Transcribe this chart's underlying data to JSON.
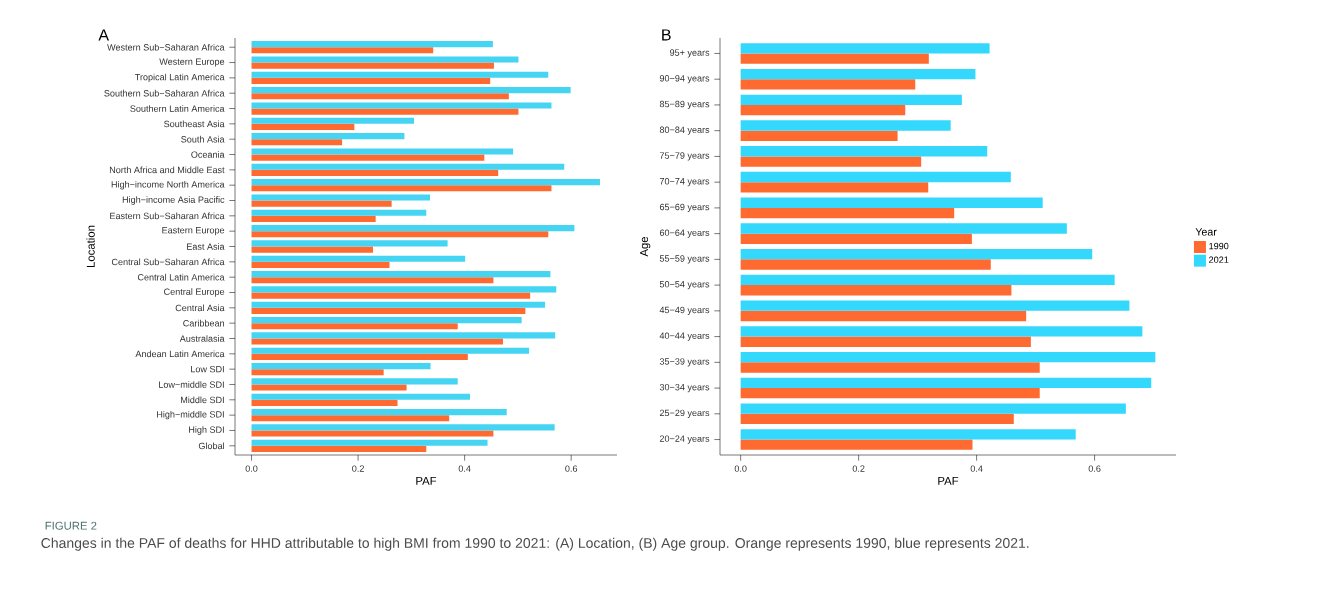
{
  "chart_data": [
    {
      "type": "bar",
      "orientation": "horizontal",
      "title": "A",
      "xlabel": "PAF",
      "ylabel": "Location",
      "legend": false,
      "categories": [
        "Western Sub−Saharan Africa",
        "Western Europe",
        "Tropical Latin America",
        "Southern Sub−Saharan Africa",
        "Southern Latin America",
        "Southeast Asia",
        "South Asia",
        "Oceania",
        "North Africa and Middle East",
        "High−income North America",
        "High−income Asia Pacific",
        "Eastern Sub−Saharan Africa",
        "Eastern Europe",
        "East Asia",
        "Central Sub−Saharan Africa",
        "Central Latin America",
        "Central Europe",
        "Central Asia",
        "Caribbean",
        "Australasia",
        "Andean Latin America",
        "Low SDI",
        "Low−middle SDI",
        "Middle SDI",
        "High−middle SDI",
        "High SDI",
        "Global"
      ],
      "series": [
        {
          "color": "#fe6a30",
          "values": [
            0.341,
            0.455,
            0.448,
            0.483,
            0.501,
            0.193,
            0.17,
            0.437,
            0.463,
            0.563,
            0.263,
            0.233,
            0.557,
            0.228,
            0.259,
            0.454,
            0.523,
            0.514,
            0.387,
            0.472,
            0.406,
            0.248,
            0.291,
            0.274,
            0.371,
            0.454,
            0.328
          ]
        },
        {
          "color": "#45d4f2",
          "values": [
            0.453,
            0.501,
            0.557,
            0.599,
            0.563,
            0.305,
            0.287,
            0.491,
            0.587,
            0.654,
            0.335,
            0.328,
            0.606,
            0.368,
            0.401,
            0.561,
            0.572,
            0.551,
            0.507,
            0.57,
            0.521,
            0.336,
            0.387,
            0.41,
            0.479,
            0.569,
            0.443
          ]
        }
      ],
      "xlim": [
        -0.031,
        0.686
      ],
      "xticks": [
        {
          "value": 0,
          "label": "0.0"
        },
        0.2,
        0.4,
        0.6
      ],
      "annotations": [
        "FIGURE 2",
        "Changes in the PAF of deaths for HHD attributable to high BMI from 1990 to 2021: (A) Location, (B) Age group. Orange represents 1990, blue represents 2021."
      ]
    },
    {
      "type": "bar",
      "orientation": "horizontal",
      "title": "B",
      "xlabel": "PAF",
      "ylabel": "Age",
      "legend": "right",
      "legend_title": "Year",
      "categories": [
        "95+ years",
        "90−94 years",
        "85−89 years",
        "80−84 years",
        "75−79 years",
        "70−74 years",
        "65−69 years",
        "60−64 years",
        "55−59 years",
        "50−54 years",
        "45−49 years",
        "40−44 years",
        "35−39 years",
        "30−34 years",
        "25−29 years",
        "20−24 years"
      ],
      "series": [
        {
          "name": "1990",
          "color": "#fe6a30",
          "values": [
            0.319,
            0.296,
            0.279,
            0.266,
            0.306,
            0.318,
            0.362,
            0.392,
            0.424,
            0.459,
            0.484,
            0.492,
            0.507,
            0.507,
            0.463,
            0.393
          ]
        },
        {
          "name": "2021",
          "color": "#33d8fc",
          "values": [
            0.422,
            0.398,
            0.375,
            0.356,
            0.418,
            0.458,
            0.512,
            0.553,
            0.596,
            0.634,
            0.659,
            0.681,
            0.703,
            0.696,
            0.653,
            0.568
          ]
        }
      ],
      "xlim": [
        -0.035,
        0.738
      ],
      "xticks": [
        {
          "value": 0,
          "label": "0.0"
        },
        0.2,
        0.4,
        0.6
      ]
    }
  ]
}
